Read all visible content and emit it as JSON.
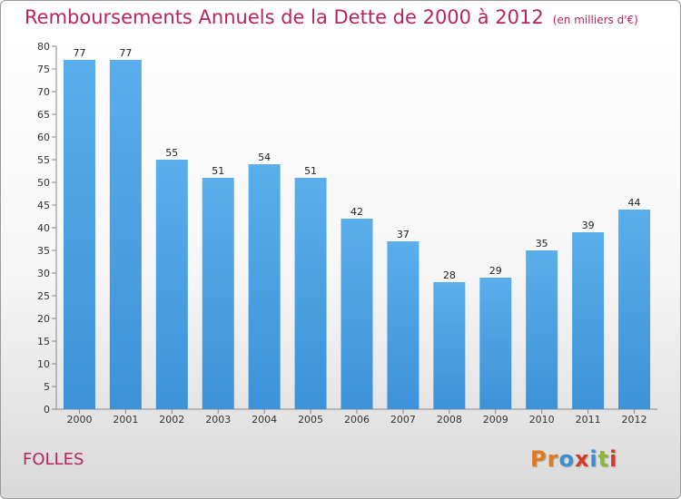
{
  "chart_data": {
    "type": "bar",
    "title": "Remboursements Annuels de la Dette de 2000 à 2012",
    "subtitle": "(en milliers d'€)",
    "categories": [
      "2000",
      "2001",
      "2002",
      "2003",
      "2004",
      "2005",
      "2006",
      "2007",
      "2008",
      "2009",
      "2010",
      "2011",
      "2012"
    ],
    "values": [
      77,
      77,
      55,
      51,
      54,
      51,
      42,
      37,
      28,
      29,
      35,
      39,
      44
    ],
    "ylim": [
      0,
      80
    ],
    "yticks": [
      0,
      5,
      10,
      15,
      20,
      25,
      30,
      35,
      40,
      45,
      50,
      55,
      60,
      65,
      70,
      75,
      80
    ],
    "xlabel": "",
    "ylabel": "",
    "grid": false,
    "bar_color": "#3d92d8",
    "bar_color_top": "#5aaeea"
  },
  "footer": {
    "place": "FOLLES",
    "logo": "Proxiti",
    "logo_colors": [
      "#e07a1e",
      "#e07a1e",
      "#3a8fd0",
      "#d23a2a",
      "#3a8fd0",
      "#8cb83a",
      "#d23a2a"
    ]
  },
  "colors": {
    "title": "#b8245f"
  }
}
